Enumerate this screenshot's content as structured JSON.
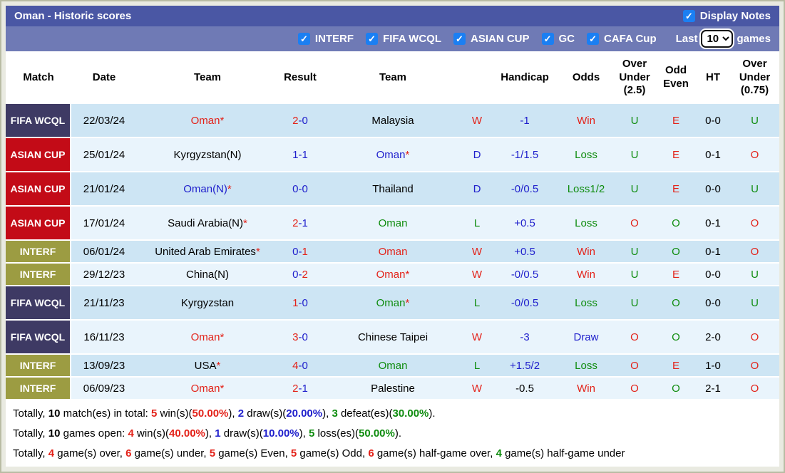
{
  "title_bar": {
    "title": "Oman - Historic scores",
    "display_notes_label": "Display Notes",
    "display_notes_checked": true,
    "checkmark": "✓"
  },
  "filter_bar": {
    "filters": [
      {
        "label": "INTERF",
        "checked": true
      },
      {
        "label": "FIFA WCQL",
        "checked": true
      },
      {
        "label": "ASIAN CUP",
        "checked": true
      },
      {
        "label": "GC",
        "checked": true
      },
      {
        "label": "CAFA Cup",
        "checked": true
      }
    ],
    "last_label": "Last",
    "last_games_value": "10",
    "games_label": "games"
  },
  "colors": {
    "red": "#e32219",
    "blue": "#2020cc",
    "green": "#0e8c0e",
    "black": "#000000",
    "fifa_badge": "#3e3a64",
    "asian_badge": "#c30b17",
    "interf_badge": "#9c9c42",
    "row_dark": "#cde5f4",
    "row_light": "#e9f4fc",
    "title_bar_bg": "#4a57a4",
    "filter_bar_bg": "#6f7ab5",
    "checkbox_blue": "#1b7ff2"
  },
  "table": {
    "headers": [
      "Match",
      "Date",
      "Team",
      "Result",
      "Team",
      "",
      "Handicap",
      "Odds",
      "Over Under (2.5)",
      "Odd Even",
      "HT",
      "Over Under (0.75)"
    ],
    "rows": [
      {
        "competition": "FIFA WCQL",
        "competition_type": "fifa",
        "date": "22/03/24",
        "team1": {
          "name": "Oman",
          "asterisk": true,
          "color": "red"
        },
        "result": {
          "home": "2",
          "home_color": "red",
          "away": "0",
          "away_color": "blue"
        },
        "team2": {
          "name": "Malaysia",
          "asterisk": false,
          "color": "black"
        },
        "wdl": {
          "text": "W",
          "color": "red"
        },
        "handicap": {
          "text": "-1",
          "color": "blue"
        },
        "odds": {
          "text": "Win",
          "color": "red"
        },
        "ou25": {
          "text": "U",
          "color": "green"
        },
        "odd_even": {
          "text": "E",
          "color": "red"
        },
        "ht": "0-0",
        "ou075": {
          "text": "U",
          "color": "green"
        }
      },
      {
        "competition": "ASIAN CUP",
        "competition_type": "asian",
        "date": "25/01/24",
        "team1": {
          "name": "Kyrgyzstan(N)",
          "asterisk": false,
          "color": "black"
        },
        "result": {
          "home": "1",
          "home_color": "blue",
          "away": "1",
          "away_color": "blue"
        },
        "team2": {
          "name": "Oman",
          "asterisk": true,
          "color": "blue"
        },
        "wdl": {
          "text": "D",
          "color": "blue"
        },
        "handicap": {
          "text": "-1/1.5",
          "color": "blue"
        },
        "odds": {
          "text": "Loss",
          "color": "green"
        },
        "ou25": {
          "text": "U",
          "color": "green"
        },
        "odd_even": {
          "text": "E",
          "color": "red"
        },
        "ht": "0-1",
        "ou075": {
          "text": "O",
          "color": "red"
        }
      },
      {
        "competition": "ASIAN CUP",
        "competition_type": "asian",
        "date": "21/01/24",
        "team1": {
          "name": "Oman(N)",
          "asterisk": true,
          "color": "blue"
        },
        "result": {
          "home": "0",
          "home_color": "blue",
          "away": "0",
          "away_color": "blue"
        },
        "team2": {
          "name": "Thailand",
          "asterisk": false,
          "color": "black"
        },
        "wdl": {
          "text": "D",
          "color": "blue"
        },
        "handicap": {
          "text": "-0/0.5",
          "color": "blue"
        },
        "odds": {
          "text": "Loss1/2",
          "color": "green"
        },
        "ou25": {
          "text": "U",
          "color": "green"
        },
        "odd_even": {
          "text": "E",
          "color": "red"
        },
        "ht": "0-0",
        "ou075": {
          "text": "U",
          "color": "green"
        }
      },
      {
        "competition": "ASIAN CUP",
        "competition_type": "asian",
        "date": "17/01/24",
        "team1": {
          "name": "Saudi Arabia(N)",
          "asterisk": true,
          "color": "black"
        },
        "result": {
          "home": "2",
          "home_color": "red",
          "away": "1",
          "away_color": "blue"
        },
        "team2": {
          "name": "Oman",
          "asterisk": false,
          "color": "green"
        },
        "wdl": {
          "text": "L",
          "color": "green"
        },
        "handicap": {
          "text": "+0.5",
          "color": "blue"
        },
        "odds": {
          "text": "Loss",
          "color": "green"
        },
        "ou25": {
          "text": "O",
          "color": "red"
        },
        "odd_even": {
          "text": "O",
          "color": "green"
        },
        "ht": "0-1",
        "ou075": {
          "text": "O",
          "color": "red"
        }
      },
      {
        "competition": "INTERF",
        "competition_type": "interf",
        "date": "06/01/24",
        "team1": {
          "name": "United Arab Emirates",
          "asterisk": true,
          "color": "black"
        },
        "result": {
          "home": "0",
          "home_color": "blue",
          "away": "1",
          "away_color": "red"
        },
        "team2": {
          "name": "Oman",
          "asterisk": false,
          "color": "red"
        },
        "wdl": {
          "text": "W",
          "color": "red"
        },
        "handicap": {
          "text": "+0.5",
          "color": "blue"
        },
        "odds": {
          "text": "Win",
          "color": "red"
        },
        "ou25": {
          "text": "U",
          "color": "green"
        },
        "odd_even": {
          "text": "O",
          "color": "green"
        },
        "ht": "0-1",
        "ou075": {
          "text": "O",
          "color": "red"
        }
      },
      {
        "competition": "INTERF",
        "competition_type": "interf",
        "date": "29/12/23",
        "team1": {
          "name": "China(N)",
          "asterisk": false,
          "color": "black"
        },
        "result": {
          "home": "0",
          "home_color": "blue",
          "away": "2",
          "away_color": "red"
        },
        "team2": {
          "name": "Oman",
          "asterisk": true,
          "color": "red"
        },
        "wdl": {
          "text": "W",
          "color": "red"
        },
        "handicap": {
          "text": "-0/0.5",
          "color": "blue"
        },
        "odds": {
          "text": "Win",
          "color": "red"
        },
        "ou25": {
          "text": "U",
          "color": "green"
        },
        "odd_even": {
          "text": "E",
          "color": "red"
        },
        "ht": "0-0",
        "ou075": {
          "text": "U",
          "color": "green"
        }
      },
      {
        "competition": "FIFA WCQL",
        "competition_type": "fifa",
        "date": "21/11/23",
        "team1": {
          "name": "Kyrgyzstan",
          "asterisk": false,
          "color": "black"
        },
        "result": {
          "home": "1",
          "home_color": "red",
          "away": "0",
          "away_color": "blue"
        },
        "team2": {
          "name": "Oman",
          "asterisk": true,
          "color": "green"
        },
        "wdl": {
          "text": "L",
          "color": "green"
        },
        "handicap": {
          "text": "-0/0.5",
          "color": "blue"
        },
        "odds": {
          "text": "Loss",
          "color": "green"
        },
        "ou25": {
          "text": "U",
          "color": "green"
        },
        "odd_even": {
          "text": "O",
          "color": "green"
        },
        "ht": "0-0",
        "ou075": {
          "text": "U",
          "color": "green"
        }
      },
      {
        "competition": "FIFA WCQL",
        "competition_type": "fifa",
        "date": "16/11/23",
        "team1": {
          "name": "Oman",
          "asterisk": true,
          "color": "red"
        },
        "result": {
          "home": "3",
          "home_color": "red",
          "away": "0",
          "away_color": "blue"
        },
        "team2": {
          "name": "Chinese Taipei",
          "asterisk": false,
          "color": "black"
        },
        "wdl": {
          "text": "W",
          "color": "red"
        },
        "handicap": {
          "text": "-3",
          "color": "blue"
        },
        "odds": {
          "text": "Draw",
          "color": "blue"
        },
        "ou25": {
          "text": "O",
          "color": "red"
        },
        "odd_even": {
          "text": "O",
          "color": "green"
        },
        "ht": "2-0",
        "ou075": {
          "text": "O",
          "color": "red"
        }
      },
      {
        "competition": "INTERF",
        "competition_type": "interf",
        "date": "13/09/23",
        "team1": {
          "name": "USA",
          "asterisk": true,
          "color": "black"
        },
        "result": {
          "home": "4",
          "home_color": "red",
          "away": "0",
          "away_color": "blue"
        },
        "team2": {
          "name": "Oman",
          "asterisk": false,
          "color": "green"
        },
        "wdl": {
          "text": "L",
          "color": "green"
        },
        "handicap": {
          "text": "+1.5/2",
          "color": "blue"
        },
        "odds": {
          "text": "Loss",
          "color": "green"
        },
        "ou25": {
          "text": "O",
          "color": "red"
        },
        "odd_even": {
          "text": "E",
          "color": "red"
        },
        "ht": "1-0",
        "ou075": {
          "text": "O",
          "color": "red"
        }
      },
      {
        "competition": "INTERF",
        "competition_type": "interf",
        "date": "06/09/23",
        "team1": {
          "name": "Oman",
          "asterisk": true,
          "color": "red"
        },
        "result": {
          "home": "2",
          "home_color": "red",
          "away": "1",
          "away_color": "blue"
        },
        "team2": {
          "name": "Palestine",
          "asterisk": false,
          "color": "black"
        },
        "wdl": {
          "text": "W",
          "color": "red"
        },
        "handicap": {
          "text": "-0.5",
          "color": "black"
        },
        "odds": {
          "text": "Win",
          "color": "red"
        },
        "ou25": {
          "text": "O",
          "color": "red"
        },
        "odd_even": {
          "text": "O",
          "color": "green"
        },
        "ht": "2-1",
        "ou075": {
          "text": "O",
          "color": "red"
        }
      }
    ]
  },
  "summary": {
    "lines": [
      [
        {
          "t": "Totally, "
        },
        {
          "t": "10",
          "b": 1
        },
        {
          "t": " match(es) in total: "
        },
        {
          "t": "5",
          "b": 1,
          "c": "red"
        },
        {
          "t": " win(s)("
        },
        {
          "t": "50.00%",
          "b": 1,
          "c": "red"
        },
        {
          "t": "), "
        },
        {
          "t": "2",
          "b": 1,
          "c": "blue"
        },
        {
          "t": " draw(s)("
        },
        {
          "t": "20.00%",
          "b": 1,
          "c": "blue"
        },
        {
          "t": "), "
        },
        {
          "t": "3",
          "b": 1,
          "c": "green"
        },
        {
          "t": " defeat(es)("
        },
        {
          "t": "30.00%",
          "b": 1,
          "c": "green"
        },
        {
          "t": ")."
        }
      ],
      [
        {
          "t": "Totally, "
        },
        {
          "t": "10",
          "b": 1
        },
        {
          "t": " games open: "
        },
        {
          "t": "4",
          "b": 1,
          "c": "red"
        },
        {
          "t": " win(s)("
        },
        {
          "t": "40.00%",
          "b": 1,
          "c": "red"
        },
        {
          "t": "), "
        },
        {
          "t": "1",
          "b": 1,
          "c": "blue"
        },
        {
          "t": " draw(s)("
        },
        {
          "t": "10.00%",
          "b": 1,
          "c": "blue"
        },
        {
          "t": "), "
        },
        {
          "t": "5",
          "b": 1,
          "c": "green"
        },
        {
          "t": " loss(es)("
        },
        {
          "t": "50.00%",
          "b": 1,
          "c": "green"
        },
        {
          "t": ")."
        }
      ],
      [
        {
          "t": "Totally, "
        },
        {
          "t": "4",
          "b": 1,
          "c": "red"
        },
        {
          "t": " game(s) over, "
        },
        {
          "t": "6",
          "b": 1,
          "c": "red"
        },
        {
          "t": " game(s) under, "
        },
        {
          "t": "5",
          "b": 1,
          "c": "red"
        },
        {
          "t": " game(s) Even, "
        },
        {
          "t": "5",
          "b": 1,
          "c": "red"
        },
        {
          "t": " game(s) Odd, "
        },
        {
          "t": "6",
          "b": 1,
          "c": "red"
        },
        {
          "t": " game(s) half-game over, "
        },
        {
          "t": "4",
          "b": 1,
          "c": "green"
        },
        {
          "t": " game(s) half-game under"
        }
      ]
    ]
  }
}
